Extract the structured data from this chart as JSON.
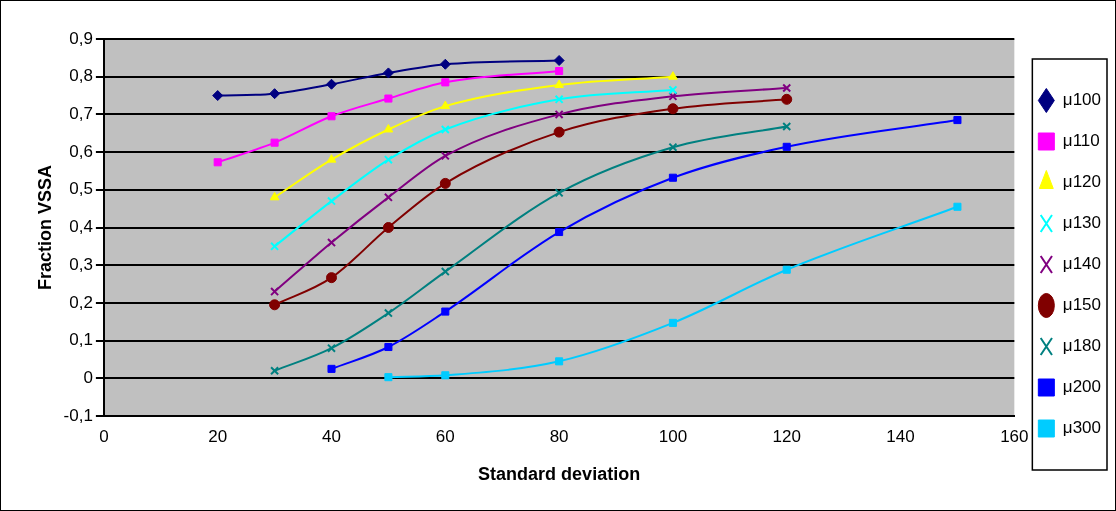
{
  "chart_data": {
    "type": "line",
    "xlabel": "Standard deviation",
    "ylabel": "Fraction VSSA",
    "x": [
      20,
      30,
      40,
      50,
      60,
      80,
      100,
      120,
      150
    ],
    "xlim": [
      0,
      160
    ],
    "xticks": [
      0,
      20,
      40,
      60,
      80,
      100,
      120,
      140,
      160
    ],
    "ylim": [
      -0.1,
      0.9
    ],
    "yticks": [
      {
        "value": -0.1,
        "label": "-0,1"
      },
      {
        "value": 0,
        "label": "0"
      },
      {
        "value": 0.1,
        "label": "0,1"
      },
      {
        "value": 0.2,
        "label": "0,2"
      },
      {
        "value": 0.3,
        "label": "0,3"
      },
      {
        "value": 0.4,
        "label": "0,4"
      },
      {
        "value": 0.5,
        "label": "0,5"
      },
      {
        "value": 0.6,
        "label": "0,6"
      },
      {
        "value": 0.7,
        "label": "0,7"
      },
      {
        "value": 0.8,
        "label": "0,8"
      },
      {
        "value": 0.9,
        "label": "0,9"
      }
    ],
    "grid": "y",
    "legend": "right",
    "line_style": "solid",
    "series": [
      {
        "name": "μ100",
        "color": "#000080",
        "marker": "diamond",
        "values": [
          0.75,
          0.755,
          0.78,
          0.81,
          0.833,
          0.843,
          null,
          null,
          null
        ]
      },
      {
        "name": "μ110",
        "color": "#ff00ff",
        "marker": "square",
        "values": [
          0.573,
          0.625,
          0.695,
          0.742,
          0.785,
          0.815,
          null,
          null,
          null
        ]
      },
      {
        "name": "μ120",
        "color": "#ffff00",
        "marker": "triangle",
        "values": [
          null,
          0.48,
          0.58,
          0.66,
          0.722,
          0.778,
          0.8,
          null,
          null
        ]
      },
      {
        "name": "μ130",
        "color": "#00ffff",
        "marker": "cross",
        "values": [
          null,
          0.35,
          0.47,
          0.58,
          0.66,
          0.74,
          0.765,
          null,
          null
        ]
      },
      {
        "name": "μ140",
        "color": "#800080",
        "marker": "cross",
        "values": [
          null,
          0.23,
          0.36,
          0.48,
          0.59,
          0.7,
          0.748,
          0.77,
          null
        ]
      },
      {
        "name": "μ150",
        "color": "#800000",
        "marker": "circle",
        "values": [
          null,
          0.195,
          0.267,
          0.4,
          0.517,
          0.653,
          0.715,
          0.74,
          null
        ]
      },
      {
        "name": "μ180",
        "color": "#008080",
        "marker": "cross",
        "values": [
          null,
          0.02,
          0.08,
          0.173,
          0.283,
          0.492,
          0.613,
          0.668,
          null
        ]
      },
      {
        "name": "μ200",
        "color": "#0000ff",
        "marker": "square",
        "values": [
          null,
          null,
          0.025,
          0.083,
          0.177,
          0.388,
          0.532,
          0.614,
          0.685
        ]
      },
      {
        "name": "μ300",
        "color": "#00ccff",
        "marker": "square",
        "values": [
          null,
          null,
          null,
          0.003,
          0.008,
          0.045,
          0.147,
          0.288,
          0.455
        ]
      }
    ]
  }
}
